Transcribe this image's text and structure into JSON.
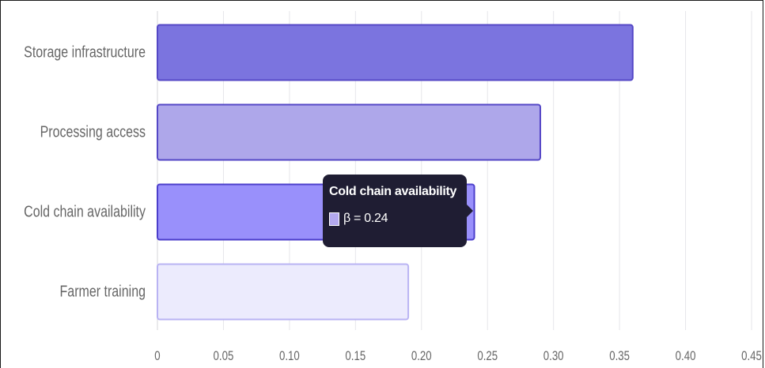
{
  "chart_data": {
    "type": "bar",
    "orientation": "horizontal",
    "categories": [
      "Storage infrastructure",
      "Processing access",
      "Cold chain availability",
      "Farmer training"
    ],
    "values": [
      0.36,
      0.29,
      0.24,
      0.19
    ],
    "bar_colors": [
      "#7b74df",
      "#aea7ea",
      "#9990fb",
      "#ecebfd"
    ],
    "bar_border_colors": [
      "#5447c6",
      "#5447c6",
      "#4b3ecb",
      "#b9b3f3"
    ],
    "xlim": [
      0,
      0.45
    ],
    "x_ticks": [
      "0",
      "0.05",
      "0.10",
      "0.15",
      "0.20",
      "0.25",
      "0.30",
      "0.35",
      "0.40",
      "0.45"
    ],
    "x_tick_values": [
      0,
      0.05,
      0.1,
      0.15,
      0.2,
      0.25,
      0.3,
      0.35,
      0.4,
      0.45
    ],
    "grid": "vertical",
    "title": "",
    "xlabel": "",
    "ylabel": ""
  },
  "tooltip": {
    "title": "Cold chain availability",
    "value_text": "β = 0.24",
    "swatch_color": "#b3a8ee"
  }
}
